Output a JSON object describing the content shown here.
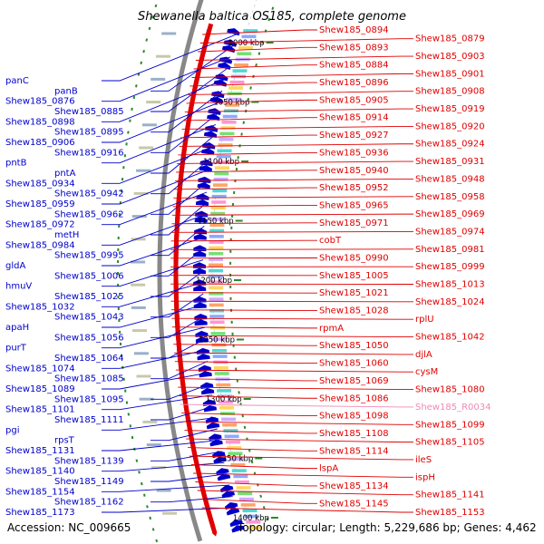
{
  "title": "Shewanella baltica OS185, complete genome",
  "footer": {
    "accession": "Accession: NC_009665",
    "topology": "Topology: circular; Length: 5,229,686 bp; Genes: 4,462"
  },
  "colors": {
    "forward": "#e00000",
    "reverse": "#0000cc",
    "rna": "#f08ab4",
    "backbone": "#888888",
    "tick": "#2a8a2a"
  },
  "ticks": [
    "1000 kbp",
    "1050 kbp",
    "1100 kbp",
    "1150 kbp",
    "1200 kbp",
    "1250 kbp",
    "1300 kbp",
    "1350 kbp",
    "1400 kbp"
  ],
  "left_labels": [
    "panC",
    "panB",
    "Shew185_0876",
    "Shew185_0885",
    "Shew185_0898",
    "Shew185_0895",
    "Shew185_0906",
    "Shew185_0916",
    "pntB",
    "pntA",
    "Shew185_0934",
    "Shew185_0942",
    "Shew185_0959",
    "Shew185_0962",
    "Shew185_0972",
    "metH",
    "Shew185_0984",
    "Shew185_0995",
    "gldA",
    "Shew185_1006",
    "hmuV",
    "Shew185_1025",
    "Shew185_1032",
    "Shew185_1043",
    "apaH",
    "Shew185_1056",
    "purT",
    "Shew185_1064",
    "Shew185_1074",
    "Shew185_1085",
    "Shew185_1089",
    "Shew185_1095",
    "Shew185_1101",
    "Shew185_1111",
    "pgi",
    "rpsT",
    "Shew185_1131",
    "Shew185_1139",
    "Shew185_1140",
    "Shew185_1149",
    "Shew185_1154",
    "Shew185_1162",
    "Shew185_1173"
  ],
  "right_labels": [
    "Shew185_0894",
    "Shew185_0879",
    "Shew185_0893",
    "Shew185_0903",
    "Shew185_0884",
    "Shew185_0901",
    "Shew185_0896",
    "Shew185_0908",
    "Shew185_0905",
    "Shew185_0919",
    "Shew185_0914",
    "Shew185_0920",
    "Shew185_0927",
    "Shew185_0924",
    "Shew185_0936",
    "Shew185_0931",
    "Shew185_0940",
    "Shew185_0948",
    "Shew185_0952",
    "Shew185_0958",
    "Shew185_0965",
    "Shew185_0969",
    "Shew185_0971",
    "Shew185_0974",
    "cobT",
    "Shew185_0981",
    "Shew185_0990",
    "Shew185_0999",
    "Shew185_1005",
    "Shew185_1013",
    "Shew185_1021",
    "Shew185_1024",
    "Shew185_1028",
    "rplU",
    "rpmA",
    "Shew185_1042",
    "Shew185_1050",
    "djlA",
    "Shew185_1060",
    "cysM",
    "Shew185_1069",
    "Shew185_1080",
    "Shew185_1086",
    "Shew185_R0034",
    "Shew185_1098",
    "Shew185_1099",
    "Shew185_1108",
    "Shew185_1105",
    "Shew185_1114",
    "ileS",
    "lspA",
    "ispH",
    "Shew185_1134",
    "Shew185_1141",
    "Shew185_1145",
    "Shew185_1153"
  ]
}
